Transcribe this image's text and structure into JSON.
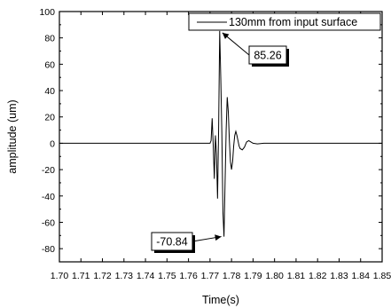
{
  "chart_data": {
    "type": "line",
    "xlabel": "Time(s)",
    "ylabel": "amplitude (um)",
    "xlim": [
      1.7,
      1.85
    ],
    "ylim": [
      -90,
      100
    ],
    "x_ticks": [
      "1.70",
      "1.71",
      "1.72",
      "1.73",
      "1.74",
      "1.75",
      "1.76",
      "1.77",
      "1.78",
      "1.79",
      "1.80",
      "1.81",
      "1.82",
      "1.83",
      "1.84",
      "1.85"
    ],
    "y_ticks": [
      "100",
      "80",
      "60",
      "40",
      "20",
      "0",
      "-20",
      "-40",
      "-60",
      "-80"
    ],
    "grid": false,
    "legend_position": "top-right",
    "series": [
      {
        "name": "130mm from input surface",
        "color": "#000000",
        "x": [
          1.7,
          1.77,
          1.7705,
          1.771,
          1.7715,
          1.772,
          1.7725,
          1.773,
          1.7735,
          1.774,
          1.7745,
          1.775,
          1.7755,
          1.776,
          1.7765,
          1.777,
          1.7775,
          1.778,
          1.7785,
          1.779,
          1.7795,
          1.78,
          1.7805,
          1.781,
          1.7815,
          1.782,
          1.7825,
          1.783,
          1.7835,
          1.784,
          1.785,
          1.786,
          1.787,
          1.788,
          1.789,
          1.79,
          1.792,
          1.795,
          1.8,
          1.85
        ],
        "y": [
          0,
          0,
          2,
          19,
          -2,
          -27,
          6,
          -8,
          -42,
          10,
          85.26,
          50,
          8,
          -52,
          -70.84,
          -30,
          10,
          35,
          24,
          2,
          -14,
          -20,
          -14,
          -2,
          6,
          9,
          6,
          2,
          -2,
          -4,
          -5,
          -3,
          1,
          2,
          1,
          0,
          -0.5,
          0,
          0,
          0
        ]
      }
    ],
    "annotations": [
      {
        "text": "85.26",
        "x": 1.7745,
        "y": 85.26
      },
      {
        "text": "-70.84",
        "x": 1.7765,
        "y": -70.84
      }
    ]
  }
}
